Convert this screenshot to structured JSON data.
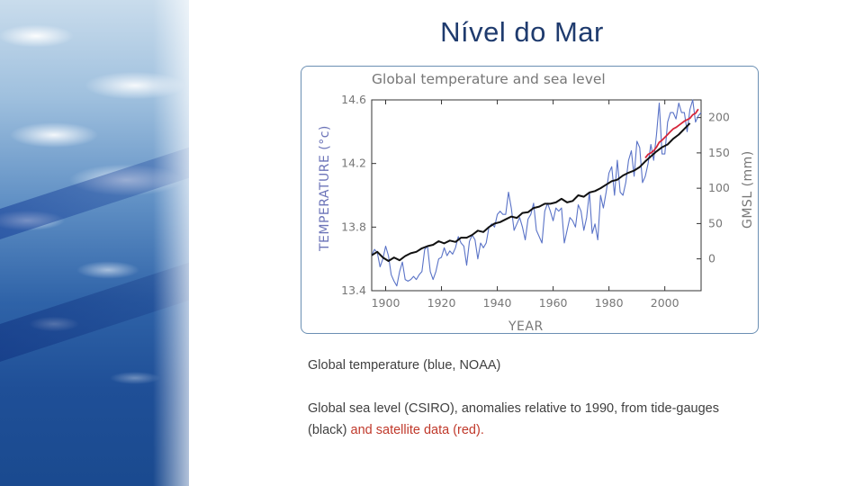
{
  "slide": {
    "title": "Nível do Mar"
  },
  "caption": {
    "line1": "Global temperature (blue, NOAA)",
    "line2_part1": "Global sea level (CSIRO), anomalies relative to 1990,  from tide-gauges (black) ",
    "line2_part2": "and satellite data (red)."
  },
  "colors": {
    "temperature": "#5a73c7",
    "tide_gauge": "#111111",
    "satellite": "#d6263a",
    "axis": "#333333",
    "label": "#777777"
  },
  "chart_data": {
    "type": "line",
    "title": "Global temperature and sea level",
    "xlabel": "YEAR",
    "ylabel_left": "TEMPERATURE (°c)",
    "ylabel_right": "GMSL (mm)",
    "xlim": [
      1895,
      2013
    ],
    "ylim_left": [
      13.4,
      14.6
    ],
    "ylim_right": [
      -45,
      225
    ],
    "x_ticks": [
      1900,
      1920,
      1940,
      1960,
      1980,
      2000
    ],
    "y_ticks_left": [
      14.6,
      14.2,
      13.8,
      13.4
    ],
    "y_ticks_right": [
      200,
      150,
      100,
      50,
      0
    ],
    "series": [
      {
        "name": "Global temperature (NOAA)",
        "axis": "left",
        "color": "#5a73c7",
        "x": [
          1895,
          1896,
          1897,
          1898,
          1899,
          1900,
          1901,
          1902,
          1903,
          1904,
          1905,
          1906,
          1907,
          1908,
          1909,
          1910,
          1911,
          1912,
          1913,
          1914,
          1915,
          1916,
          1917,
          1918,
          1919,
          1920,
          1921,
          1922,
          1923,
          1924,
          1925,
          1926,
          1927,
          1928,
          1929,
          1930,
          1931,
          1932,
          1933,
          1934,
          1935,
          1936,
          1937,
          1938,
          1939,
          1940,
          1941,
          1942,
          1943,
          1944,
          1945,
          1946,
          1947,
          1948,
          1949,
          1950,
          1951,
          1952,
          1953,
          1954,
          1955,
          1956,
          1957,
          1958,
          1959,
          1960,
          1961,
          1962,
          1963,
          1964,
          1965,
          1966,
          1967,
          1968,
          1969,
          1970,
          1971,
          1972,
          1973,
          1974,
          1975,
          1976,
          1977,
          1978,
          1979,
          1980,
          1981,
          1982,
          1983,
          1984,
          1985,
          1986,
          1987,
          1988,
          1989,
          1990,
          1991,
          1992,
          1993,
          1994,
          1995,
          1996,
          1997,
          1998,
          1999,
          2000,
          2001,
          2002,
          2003,
          2004,
          2005,
          2006,
          2007,
          2008,
          2009,
          2010,
          2011,
          2012,
          2013
        ],
        "values": [
          13.62,
          13.66,
          13.64,
          13.55,
          13.6,
          13.68,
          13.62,
          13.5,
          13.46,
          13.43,
          13.52,
          13.58,
          13.47,
          13.46,
          13.47,
          13.49,
          13.47,
          13.5,
          13.52,
          13.66,
          13.68,
          13.52,
          13.47,
          13.52,
          13.6,
          13.61,
          13.67,
          13.62,
          13.65,
          13.63,
          13.67,
          13.74,
          13.7,
          13.68,
          13.56,
          13.71,
          13.75,
          13.72,
          13.6,
          13.7,
          13.67,
          13.7,
          13.8,
          13.82,
          13.8,
          13.88,
          13.9,
          13.88,
          13.88,
          14.02,
          13.92,
          13.78,
          13.82,
          13.86,
          13.8,
          13.72,
          13.85,
          13.88,
          13.95,
          13.78,
          13.74,
          13.7,
          13.9,
          13.95,
          13.9,
          13.84,
          13.92,
          13.9,
          13.92,
          13.7,
          13.78,
          13.86,
          13.84,
          13.8,
          13.94,
          13.9,
          13.78,
          13.86,
          14.02,
          13.76,
          13.82,
          13.72,
          14.0,
          13.92,
          14.02,
          14.14,
          14.18,
          14.0,
          14.22,
          14.02,
          14.0,
          14.08,
          14.22,
          14.28,
          14.12,
          14.34,
          14.3,
          14.08,
          14.12,
          14.2,
          14.32,
          14.22,
          14.38,
          14.58,
          14.26,
          14.26,
          14.46,
          14.52,
          14.52,
          14.48,
          14.58,
          14.52,
          14.52,
          14.4,
          14.54,
          14.6,
          14.46,
          14.5,
          14.52
        ]
      },
      {
        "name": "Sea level, tide gauges (CSIRO)",
        "axis": "right",
        "color": "#111111",
        "x": [
          1895,
          1897,
          1899,
          1901,
          1903,
          1905,
          1907,
          1909,
          1911,
          1913,
          1915,
          1917,
          1919,
          1921,
          1923,
          1925,
          1927,
          1929,
          1931,
          1933,
          1935,
          1937,
          1939,
          1941,
          1943,
          1945,
          1947,
          1949,
          1951,
          1953,
          1955,
          1957,
          1959,
          1961,
          1963,
          1965,
          1967,
          1969,
          1971,
          1973,
          1975,
          1977,
          1979,
          1981,
          1983,
          1985,
          1987,
          1989,
          1991,
          1993,
          1995,
          1997,
          1999,
          2001,
          2003,
          2005,
          2007,
          2009
        ],
        "values": [
          5,
          10,
          2,
          -3,
          2,
          -2,
          4,
          8,
          10,
          15,
          18,
          20,
          25,
          22,
          26,
          24,
          30,
          30,
          34,
          40,
          38,
          45,
          50,
          52,
          56,
          60,
          58,
          65,
          66,
          72,
          74,
          78,
          78,
          80,
          85,
          80,
          82,
          90,
          88,
          94,
          96,
          100,
          105,
          110,
          112,
          118,
          122,
          125,
          130,
          138,
          145,
          152,
          158,
          162,
          170,
          176,
          184,
          192
        ]
      },
      {
        "name": "Sea level, satellite (CSIRO)",
        "axis": "right",
        "color": "#d6263a",
        "x": [
          1993,
          1994,
          1995,
          1996,
          1997,
          1998,
          1999,
          2000,
          2001,
          2002,
          2003,
          2004,
          2005,
          2006,
          2007,
          2008,
          2009,
          2010,
          2011,
          2012
        ],
        "values": [
          143,
          148,
          150,
          153,
          158,
          165,
          168,
          172,
          176,
          180,
          184,
          186,
          189,
          192,
          195,
          197,
          199,
          204,
          206,
          212
        ]
      }
    ]
  }
}
